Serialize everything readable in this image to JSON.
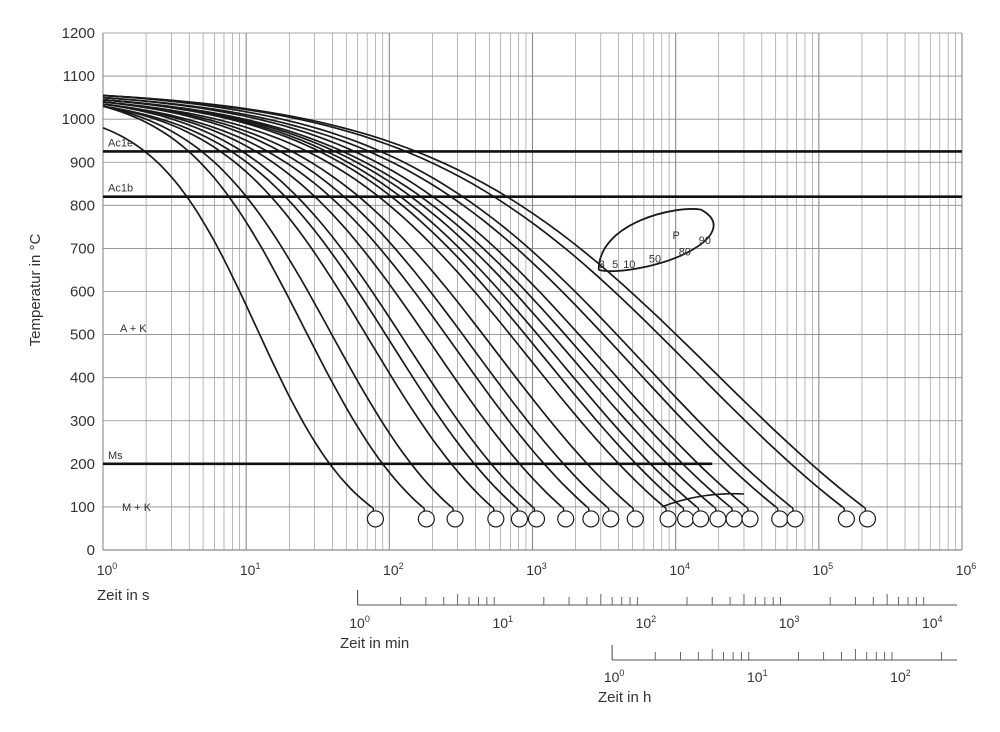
{
  "chart_data": {
    "type": "line",
    "title": "",
    "xlabel": "Zeit in s",
    "ylabel": "Temperatur in °C",
    "x_scale": "log",
    "xlim": [
      1,
      1000000
    ],
    "ylim": [
      0,
      1200
    ],
    "y_ticks": [
      "0",
      "100",
      "200",
      "300",
      "400",
      "500",
      "600",
      "700",
      "800",
      "900",
      "1000",
      "1100",
      "1200"
    ],
    "x_ticks": [
      {
        "base": "10",
        "exp": "0"
      },
      {
        "base": "10",
        "exp": "1"
      },
      {
        "base": "10",
        "exp": "2"
      },
      {
        "base": "10",
        "exp": "3"
      },
      {
        "base": "10",
        "exp": "4"
      },
      {
        "base": "10",
        "exp": "5"
      },
      {
        "base": "10",
        "exp": "6"
      }
    ],
    "grid": true,
    "secondary_axes": [
      {
        "label": "Zeit in min",
        "xlim_seconds": [
          60,
          1000000
        ],
        "ticks": [
          {
            "base": "10",
            "exp": "0"
          },
          {
            "base": "10",
            "exp": "1"
          },
          {
            "base": "10",
            "exp": "2"
          },
          {
            "base": "10",
            "exp": "3"
          },
          {
            "base": "10",
            "exp": "4"
          }
        ]
      },
      {
        "label": "Zeit in h",
        "xlim_seconds": [
          3600,
          1000000
        ],
        "ticks": [
          {
            "base": "10",
            "exp": "0"
          },
          {
            "base": "10",
            "exp": "1"
          },
          {
            "base": "10",
            "exp": "2"
          }
        ]
      }
    ],
    "reference_lines": [
      {
        "label": "Ac1e",
        "y": 925
      },
      {
        "label": "Ac1b",
        "y": 820
      },
      {
        "label": "Ms",
        "y": 200
      }
    ],
    "regions": [
      "A + K",
      "M + K"
    ],
    "pearlite_zone": {
      "label": "P",
      "percent_labels": [
        "3",
        "5",
        "10",
        "50",
        "80",
        "90"
      ]
    },
    "series": [
      {
        "start_temp": 980,
        "t100": 75
      },
      {
        "start_temp": 1030,
        "t100": 170
      },
      {
        "start_temp": 1030,
        "t100": 270
      },
      {
        "start_temp": 1030,
        "t100": 520
      },
      {
        "start_temp": 1030,
        "t100": 760
      },
      {
        "start_temp": 1035,
        "t100": 1000
      },
      {
        "start_temp": 1035,
        "t100": 1600
      },
      {
        "start_temp": 1035,
        "t100": 2400
      },
      {
        "start_temp": 1040,
        "t100": 3300
      },
      {
        "start_temp": 1040,
        "t100": 4900
      },
      {
        "start_temp": 1040,
        "t100": 8300
      },
      {
        "start_temp": 1045,
        "t100": 11000
      },
      {
        "start_temp": 1045,
        "t100": 14000
      },
      {
        "start_temp": 1045,
        "t100": 18500
      },
      {
        "start_temp": 1045,
        "t100": 24000
      },
      {
        "start_temp": 1050,
        "t100": 31000
      },
      {
        "start_temp": 1050,
        "t100": 50000
      },
      {
        "start_temp": 1055,
        "t100": 64000
      },
      {
        "start_temp": 1055,
        "t100": 146000
      },
      {
        "start_temp": 1055,
        "t100": 205000
      }
    ]
  }
}
